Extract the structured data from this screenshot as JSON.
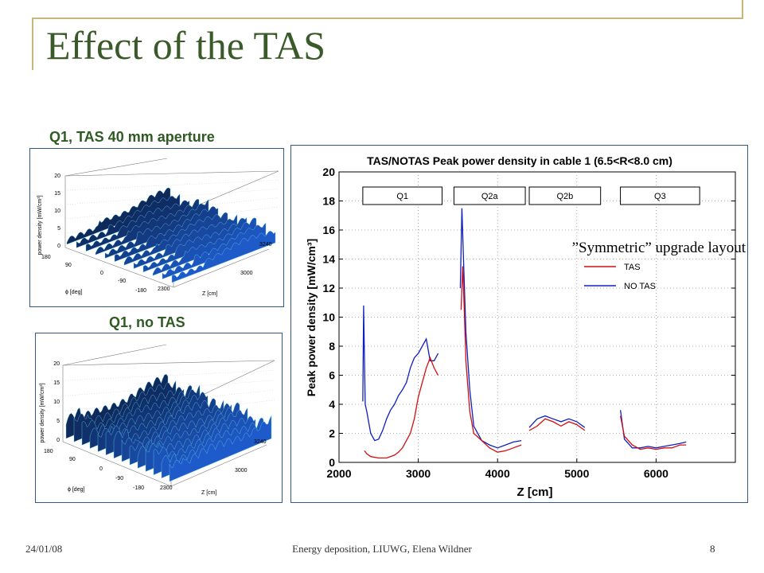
{
  "title": "Effect of the TAS",
  "left_plots": [
    {
      "caption": "Q1, TAS 40 mm aperture",
      "zlabel": "power density [mW/cm³]",
      "z_ticks": [
        "20",
        "15",
        "10",
        "5",
        "0"
      ],
      "phi_ticks": [
        "180",
        "90",
        "0",
        "-90",
        "-180"
      ],
      "phi_label": "ϕ [deg]",
      "zaxis_ticks": [
        "2300",
        "3000",
        "3240"
      ],
      "zaxis_label": "Z [cm]"
    },
    {
      "caption": "Q1, no TAS",
      "zlabel": "power density [mW/cm³]",
      "z_ticks": [
        "20",
        "15",
        "10",
        "5",
        "0"
      ],
      "phi_ticks": [
        "180",
        "90",
        "0",
        "-90",
        "-180"
      ],
      "phi_label": "ϕ [deg]",
      "zaxis_ticks": [
        "2300",
        "3000",
        "3240"
      ],
      "zaxis_label": "Z [cm]"
    }
  ],
  "annotation": "”Symmetric” upgrade layout",
  "footer": {
    "date": "24/01/08",
    "center": "Energy deposition, LIUWG, Elena Wildner",
    "page": "8"
  },
  "colors": {
    "title": "#3b5a2a",
    "caption": "#2e5a23",
    "tas": "#d01010",
    "notas": "#1020c0"
  },
  "chart_data": {
    "type": "line",
    "title": "TAS/NOTAS Peak power density in cable 1 (6.5<R<8.0 cm)",
    "xlabel": "Z [cm]",
    "ylabel": "Peak power density [mW/cm³]",
    "xlim": [
      2000,
      7000
    ],
    "ylim": [
      0,
      20
    ],
    "x_ticks": [
      2000,
      3000,
      4000,
      5000,
      6000
    ],
    "y_ticks": [
      0,
      2,
      4,
      6,
      8,
      10,
      12,
      14,
      16,
      18,
      20
    ],
    "grid": true,
    "legend_position": "right",
    "magnet_boxes": [
      {
        "label": "Q1",
        "x_start": 2300,
        "x_end": 3300
      },
      {
        "label": "Q2a",
        "x_start": 3450,
        "x_end": 4350
      },
      {
        "label": "Q2b",
        "x_start": 4400,
        "x_end": 5300
      },
      {
        "label": "Q3",
        "x_start": 5550,
        "x_end": 6550
      }
    ],
    "series": [
      {
        "name": "TAS",
        "segments": [
          [
            [
              2320,
              0.8
            ],
            [
              2350,
              0.6
            ],
            [
              2400,
              0.4
            ],
            [
              2500,
              0.3
            ],
            [
              2600,
              0.3
            ],
            [
              2700,
              0.5
            ],
            [
              2750,
              0.7
            ],
            [
              2800,
              1.0
            ],
            [
              2850,
              1.5
            ],
            [
              2900,
              2.0
            ],
            [
              2950,
              3.0
            ],
            [
              3000,
              4.5
            ],
            [
              3050,
              5.5
            ],
            [
              3100,
              6.5
            ],
            [
              3150,
              7.2
            ],
            [
              3200,
              6.5
            ],
            [
              3250,
              6.0
            ]
          ],
          [
            [
              3540,
              10.5
            ],
            [
              3560,
              13.5
            ],
            [
              3580,
              10.5
            ],
            [
              3600,
              7.0
            ],
            [
              3650,
              3.5
            ],
            [
              3700,
              2.0
            ],
            [
              3800,
              1.5
            ],
            [
              3900,
              1.0
            ],
            [
              4000,
              0.7
            ],
            [
              4100,
              0.8
            ],
            [
              4200,
              1.0
            ],
            [
              4300,
              1.2
            ]
          ],
          [
            [
              4400,
              2.2
            ],
            [
              4500,
              2.5
            ],
            [
              4600,
              3.0
            ],
            [
              4700,
              2.8
            ],
            [
              4800,
              2.5
            ],
            [
              4900,
              2.8
            ],
            [
              5000,
              2.6
            ],
            [
              5100,
              2.2
            ]
          ],
          [
            [
              5550,
              3.2
            ],
            [
              5600,
              1.8
            ],
            [
              5700,
              1.2
            ],
            [
              5800,
              0.9
            ],
            [
              5900,
              1.0
            ],
            [
              6000,
              0.9
            ],
            [
              6100,
              1.0
            ],
            [
              6200,
              1.0
            ],
            [
              6300,
              1.2
            ],
            [
              6380,
              1.2
            ]
          ]
        ]
      },
      {
        "name": "NO TAS",
        "segments": [
          [
            [
              2300,
              4.2
            ],
            [
              2310,
              10.8
            ],
            [
              2330,
              4.0
            ],
            [
              2350,
              3.5
            ],
            [
              2400,
              2.0
            ],
            [
              2450,
              1.5
            ],
            [
              2500,
              1.6
            ],
            [
              2550,
              2.2
            ],
            [
              2600,
              3.0
            ],
            [
              2650,
              3.6
            ],
            [
              2700,
              4.0
            ],
            [
              2750,
              4.6
            ],
            [
              2800,
              5.0
            ],
            [
              2850,
              5.5
            ],
            [
              2900,
              6.5
            ],
            [
              2950,
              7.2
            ],
            [
              3000,
              7.5
            ],
            [
              3050,
              8.0
            ],
            [
              3100,
              8.5
            ],
            [
              3150,
              7.0
            ],
            [
              3200,
              7.0
            ],
            [
              3250,
              7.5
            ]
          ],
          [
            [
              3530,
              12.0
            ],
            [
              3550,
              17.5
            ],
            [
              3570,
              14.0
            ],
            [
              3600,
              9.0
            ],
            [
              3650,
              5.0
            ],
            [
              3700,
              2.5
            ],
            [
              3800,
              1.5
            ],
            [
              3900,
              1.2
            ],
            [
              4000,
              1.0
            ],
            [
              4100,
              1.2
            ],
            [
              4200,
              1.4
            ],
            [
              4300,
              1.5
            ]
          ],
          [
            [
              4400,
              2.4
            ],
            [
              4500,
              3.0
            ],
            [
              4600,
              3.2
            ],
            [
              4700,
              3.0
            ],
            [
              4800,
              2.8
            ],
            [
              4900,
              3.0
            ],
            [
              5000,
              2.8
            ],
            [
              5100,
              2.4
            ]
          ],
          [
            [
              5550,
              3.6
            ],
            [
              5600,
              1.6
            ],
            [
              5700,
              1.0
            ],
            [
              5800,
              1.0
            ],
            [
              5900,
              1.1
            ],
            [
              6000,
              1.0
            ],
            [
              6100,
              1.1
            ],
            [
              6200,
              1.2
            ],
            [
              6300,
              1.3
            ],
            [
              6380,
              1.4
            ]
          ]
        ]
      }
    ]
  }
}
